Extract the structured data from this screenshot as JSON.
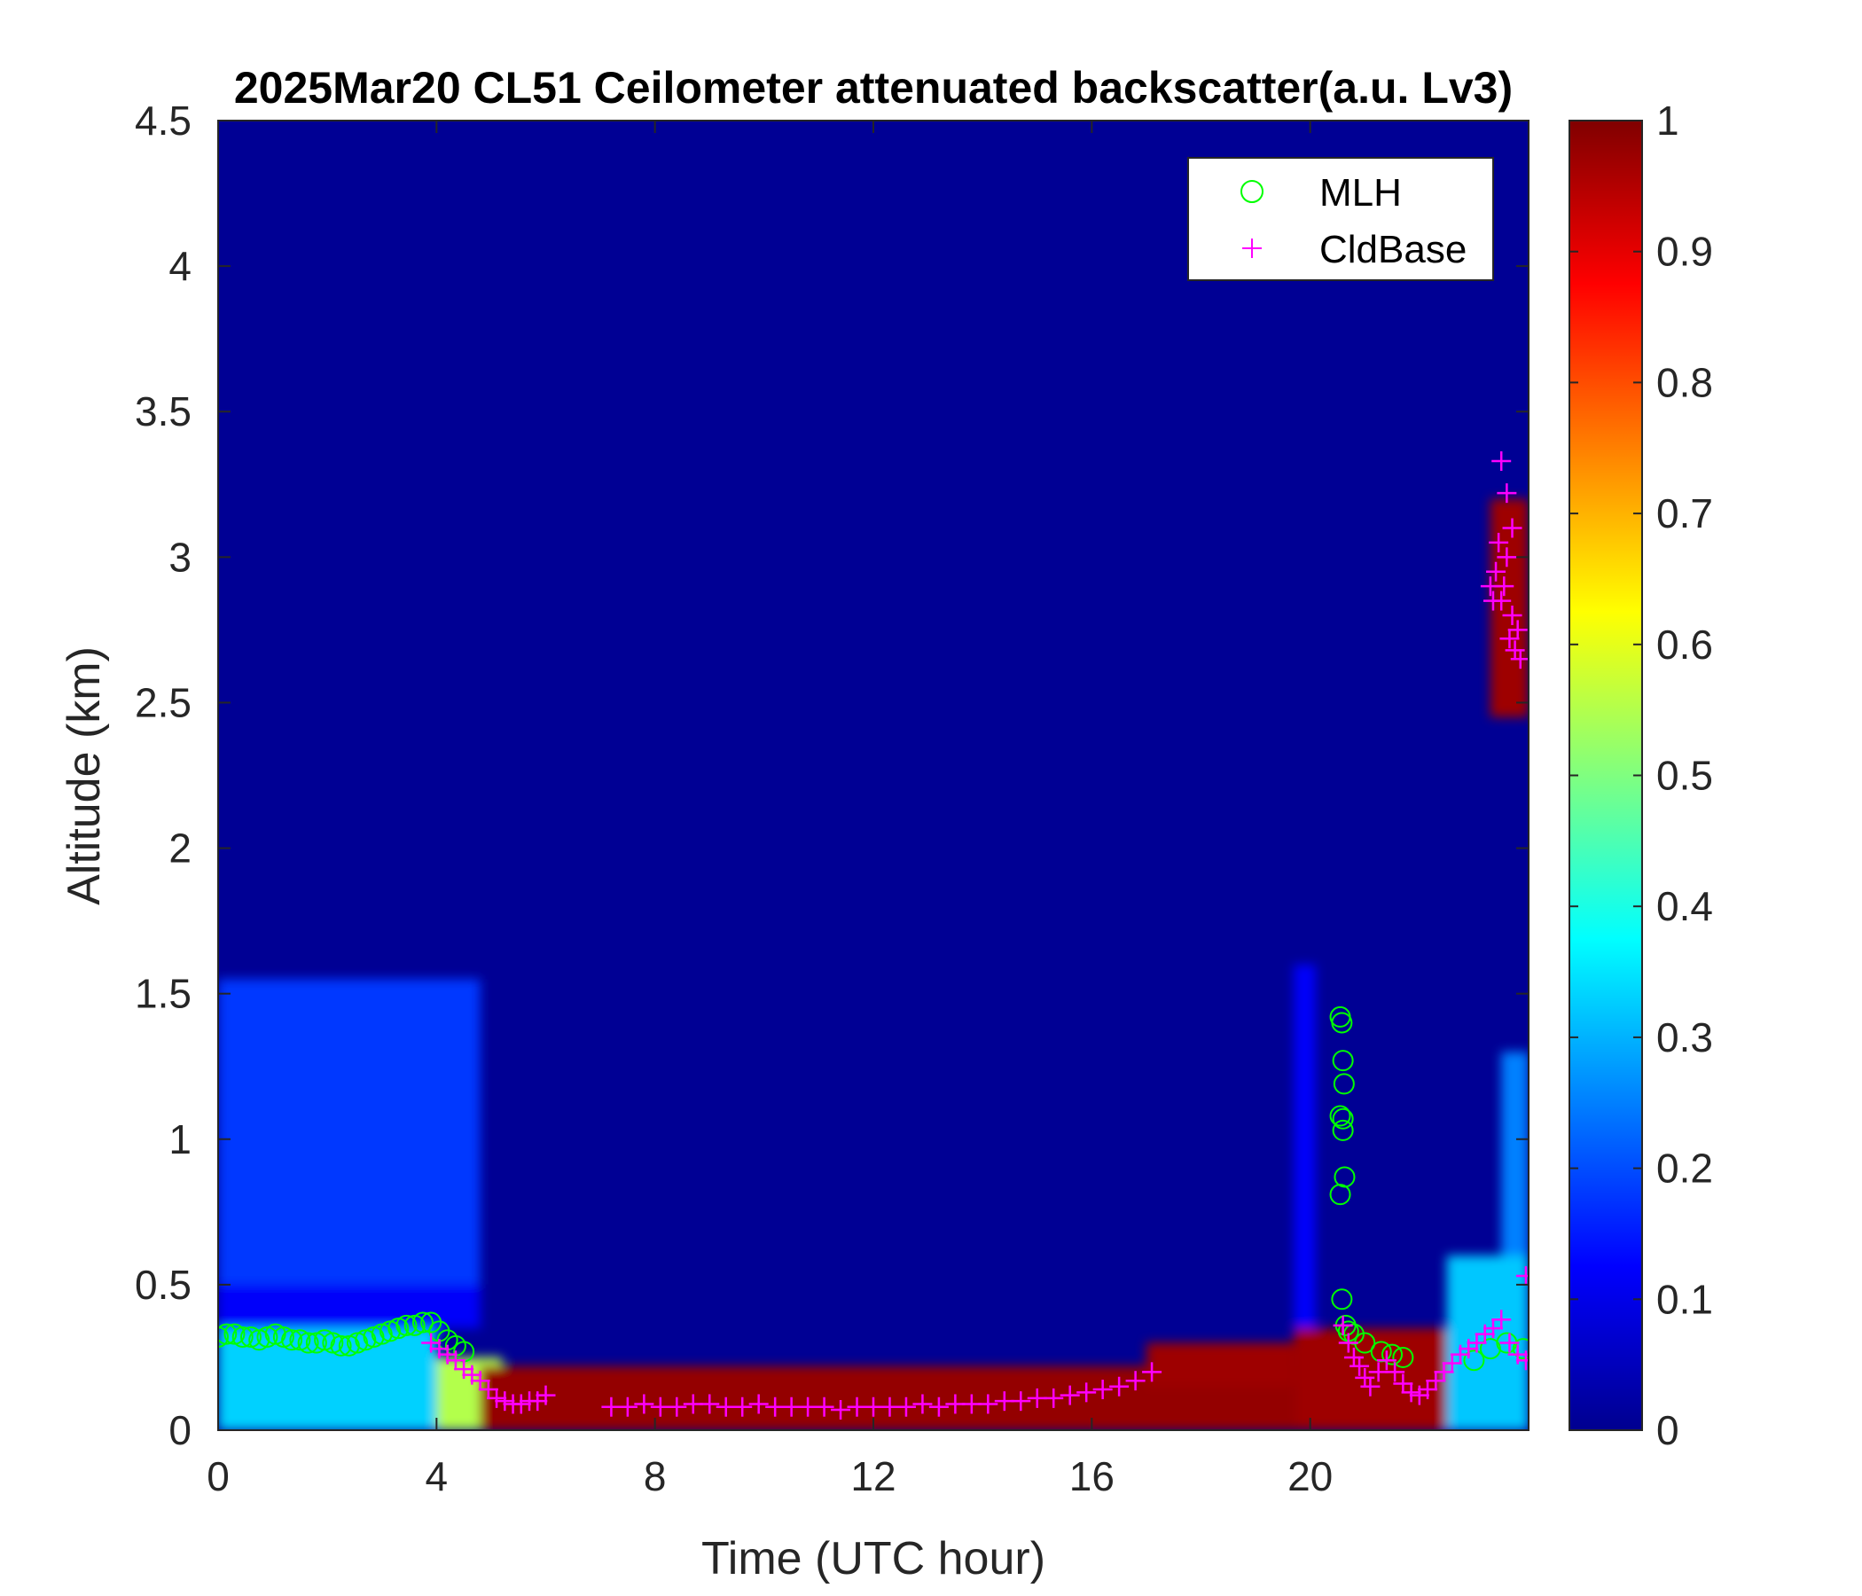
{
  "chart_data": {
    "type": "heatmap",
    "title": "2025Mar20 CL51 Ceilometer attenuated backscatter(a.u. Lv3)",
    "xlabel": "Time (UTC hour)",
    "ylabel": "Altitude (km)",
    "xlim": [
      0,
      24
    ],
    "ylim": [
      0,
      4.5
    ],
    "x_ticks": [
      "0",
      "4",
      "8",
      "12",
      "16",
      "20"
    ],
    "x_tick_values": [
      0,
      4,
      8,
      12,
      16,
      20
    ],
    "y_ticks": [
      "0",
      "0.5",
      "1",
      "1.5",
      "2",
      "2.5",
      "3",
      "3.5",
      "4",
      "4.5"
    ],
    "y_tick_values": [
      0,
      0.5,
      1,
      1.5,
      2,
      2.5,
      3,
      3.5,
      4,
      4.5
    ],
    "colorbar": {
      "colormap": "jet",
      "range": [
        0,
        1
      ],
      "ticks": [
        "0",
        "0.1",
        "0.2",
        "0.3",
        "0.4",
        "0.5",
        "0.6",
        "0.7",
        "0.8",
        "0.9",
        "1"
      ],
      "tick_values": [
        0,
        0.1,
        0.2,
        0.3,
        0.4,
        0.5,
        0.6,
        0.7,
        0.8,
        0.9,
        1
      ]
    },
    "legend": {
      "placement": "top-right",
      "entries": [
        {
          "label": "MLH",
          "marker": "circle",
          "color": "#00ff00"
        },
        {
          "label": "CldBase",
          "marker": "plus",
          "color": "#ff00ff"
        }
      ]
    },
    "background_value": 0.02,
    "regions": [
      {
        "name": "aerosol-layer-night",
        "t0": 0,
        "t1": 4.8,
        "z0": 0.5,
        "z1": 1.55,
        "value": 0.18
      },
      {
        "name": "residual-layer",
        "t0": 0,
        "t1": 4.8,
        "z0": 0.35,
        "z1": 0.5,
        "value": 0.12
      },
      {
        "name": "surface-layer-night",
        "t0": 0,
        "t1": 4.0,
        "z0": 0,
        "z1": 0.35,
        "value": 0.33
      },
      {
        "name": "surface-transition",
        "t0": 4.0,
        "t1": 5.2,
        "z0": 0,
        "z1": 0.25,
        "value": 0.55
      },
      {
        "name": "near-surface-day",
        "t0": 4.8,
        "t1": 19.7,
        "z0": 0,
        "z1": 0.22,
        "value": 0.98
      },
      {
        "name": "afternoon-rise",
        "t0": 17,
        "t1": 19.7,
        "z0": 0.15,
        "z1": 0.3,
        "value": 0.97
      },
      {
        "name": "evening-column",
        "t0": 19.7,
        "t1": 20.1,
        "z0": 0,
        "z1": 1.6,
        "value": 0.12
      },
      {
        "name": "evening-low-cloud",
        "t0": 19.7,
        "t1": 22.5,
        "z0": 0,
        "z1": 0.35,
        "value": 0.97
      },
      {
        "name": "late-surface-haze",
        "t0": 22.5,
        "t1": 24,
        "z0": 0,
        "z1": 0.6,
        "value": 0.32
      },
      {
        "name": "late-column",
        "t0": 23.5,
        "t1": 24,
        "z0": 0.6,
        "z1": 1.3,
        "value": 0.25
      },
      {
        "name": "mid-level-cloud",
        "t0": 23.3,
        "t1": 24,
        "z0": 2.45,
        "z1": 3.2,
        "value": 0.97
      }
    ],
    "series": [
      {
        "name": "MLH",
        "marker": "circle",
        "x": [
          0.0,
          0.15,
          0.3,
          0.45,
          0.6,
          0.75,
          0.9,
          1.05,
          1.2,
          1.35,
          1.5,
          1.65,
          1.8,
          1.95,
          2.1,
          2.25,
          2.4,
          2.55,
          2.7,
          2.85,
          3.0,
          3.15,
          3.3,
          3.45,
          3.6,
          3.75,
          3.9,
          4.05,
          4.2,
          4.35,
          4.5,
          20.55,
          20.58,
          20.6,
          20.62,
          20.55,
          20.6,
          20.6,
          20.63,
          20.55,
          20.58,
          20.65,
          20.7,
          20.8,
          21.0,
          21.3,
          21.5,
          21.7,
          23.0,
          23.3,
          23.6,
          23.9
        ],
        "y": [
          0.32,
          0.33,
          0.33,
          0.32,
          0.32,
          0.31,
          0.32,
          0.33,
          0.32,
          0.31,
          0.31,
          0.3,
          0.3,
          0.31,
          0.3,
          0.29,
          0.29,
          0.3,
          0.31,
          0.32,
          0.33,
          0.34,
          0.35,
          0.36,
          0.36,
          0.37,
          0.37,
          0.34,
          0.31,
          0.29,
          0.27,
          1.42,
          1.4,
          1.27,
          1.19,
          1.08,
          1.07,
          1.03,
          0.87,
          0.81,
          0.45,
          0.36,
          0.34,
          0.33,
          0.3,
          0.27,
          0.26,
          0.25,
          0.24,
          0.28,
          0.3,
          0.28
        ]
      },
      {
        "name": "CldBase",
        "marker": "plus",
        "x": [
          3.9,
          4.05,
          4.2,
          4.35,
          4.5,
          4.65,
          4.8,
          4.95,
          5.1,
          5.25,
          5.4,
          5.55,
          5.7,
          5.85,
          6.0,
          7.2,
          7.5,
          7.8,
          8.1,
          8.4,
          8.7,
          9.0,
          9.3,
          9.6,
          9.9,
          10.2,
          10.5,
          10.8,
          11.1,
          11.4,
          11.7,
          12.0,
          12.3,
          12.6,
          12.9,
          13.2,
          13.5,
          13.8,
          14.1,
          14.4,
          14.7,
          15.0,
          15.3,
          15.6,
          15.9,
          16.2,
          16.5,
          16.8,
          17.1,
          20.6,
          20.7,
          20.8,
          20.9,
          21.0,
          21.1,
          21.25,
          21.4,
          21.55,
          21.7,
          21.85,
          22.0,
          22.15,
          22.3,
          22.45,
          22.6,
          22.75,
          22.9,
          23.05,
          23.2,
          23.35,
          23.5,
          23.65,
          23.8,
          23.95,
          23.3,
          23.4,
          23.5,
          23.6,
          23.7,
          23.8,
          23.35,
          23.45,
          23.55,
          23.65,
          23.75,
          23.85,
          23.5,
          23.6,
          23.7,
          23.95
        ],
        "y": [
          0.3,
          0.28,
          0.26,
          0.24,
          0.21,
          0.19,
          0.17,
          0.14,
          0.11,
          0.1,
          0.09,
          0.09,
          0.1,
          0.1,
          0.12,
          0.08,
          0.08,
          0.09,
          0.08,
          0.08,
          0.09,
          0.09,
          0.08,
          0.08,
          0.09,
          0.08,
          0.08,
          0.08,
          0.08,
          0.07,
          0.08,
          0.08,
          0.08,
          0.08,
          0.09,
          0.08,
          0.09,
          0.09,
          0.09,
          0.1,
          0.1,
          0.11,
          0.11,
          0.12,
          0.13,
          0.14,
          0.15,
          0.17,
          0.2,
          0.36,
          0.3,
          0.25,
          0.22,
          0.18,
          0.15,
          0.2,
          0.24,
          0.2,
          0.16,
          0.13,
          0.12,
          0.14,
          0.17,
          0.2,
          0.23,
          0.26,
          0.28,
          0.3,
          0.33,
          0.35,
          0.38,
          0.3,
          0.26,
          0.24,
          2.9,
          2.95,
          2.85,
          3.0,
          2.8,
          2.75,
          2.85,
          3.05,
          2.9,
          2.72,
          2.68,
          2.65,
          3.33,
          3.22,
          3.1,
          0.53
        ]
      }
    ]
  }
}
